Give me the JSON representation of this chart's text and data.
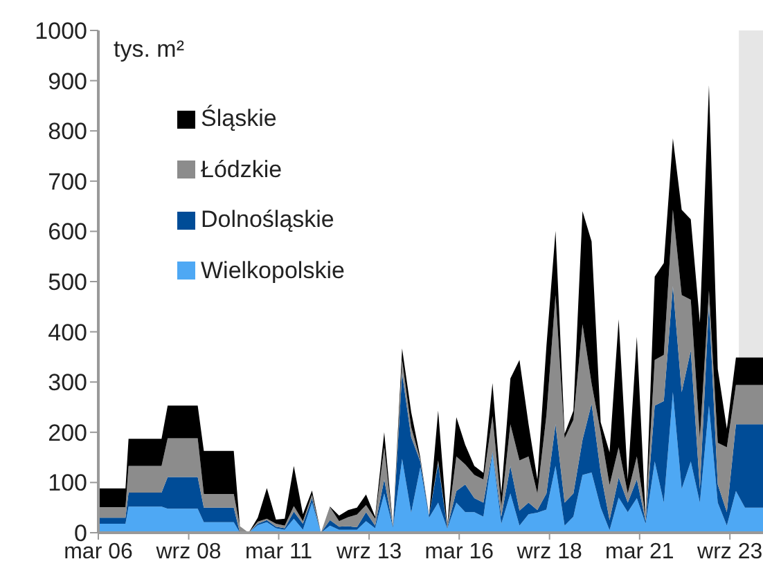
{
  "chart_data": {
    "type": "area",
    "stacked": true,
    "ylabel": "tys. m²",
    "x": [
      "2006-03",
      "2006-12",
      "2007-01",
      "2007-12",
      "2008-02",
      "2008-12",
      "2009-02",
      "2009-12",
      "2010-02",
      "2010-05",
      "2010-08",
      "2010-11",
      "2011-02",
      "2011-05",
      "2011-08",
      "2011-11",
      "2012-02",
      "2012-05",
      "2012-08",
      "2012-11",
      "2013-02",
      "2013-05",
      "2013-08",
      "2013-11",
      "2014-02",
      "2014-05",
      "2014-08",
      "2014-11",
      "2015-02",
      "2015-05",
      "2015-08",
      "2015-11",
      "2016-02",
      "2016-05",
      "2016-08",
      "2016-11",
      "2017-02",
      "2017-05",
      "2017-08",
      "2017-11",
      "2018-02",
      "2018-05",
      "2018-08",
      "2018-11",
      "2019-02",
      "2019-05",
      "2019-08",
      "2019-11",
      "2020-02",
      "2020-05",
      "2020-08",
      "2020-11",
      "2021-02",
      "2021-05",
      "2021-08",
      "2021-11",
      "2022-02",
      "2022-05",
      "2022-08",
      "2022-11",
      "2023-02",
      "2023-05",
      "2023-08",
      "2023-11",
      "2024-02",
      "2024-05",
      "2024-08"
    ],
    "series": [
      {
        "name": "Wielkopolskie",
        "color": "#4ea8f4",
        "values": [
          18,
          18,
          52,
          52,
          48,
          48,
          21,
          21,
          0,
          0,
          15,
          21,
          9,
          6,
          28,
          6,
          60,
          0,
          14,
          6,
          6,
          6,
          23,
          9,
          78,
          10,
          147,
          40,
          130,
          30,
          60,
          8,
          60,
          41,
          41,
          32,
          158,
          18,
          78,
          14,
          37,
          40,
          46,
          133,
          14,
          32,
          115,
          120,
          50,
          5,
          70,
          41,
          69,
          18,
          142,
          60,
          280,
          87,
          142,
          60,
          253,
          60,
          14,
          83,
          50,
          50,
          50
        ]
      },
      {
        "name": "Dolnośląskie",
        "color": "#004c97",
        "values": [
          12,
          12,
          28,
          28,
          63,
          63,
          29,
          29,
          0,
          0,
          3,
          4,
          3,
          3,
          14,
          12,
          9,
          0,
          11,
          6,
          7,
          5,
          18,
          5,
          28,
          2,
          170,
          150,
          12,
          4,
          78,
          2,
          23,
          55,
          28,
          28,
          4,
          14,
          55,
          30,
          23,
          5,
          32,
          83,
          46,
          46,
          70,
          137,
          70,
          20,
          40,
          19,
          37,
          5,
          111,
          202,
          211,
          193,
          221,
          27,
          202,
          36,
          27,
          133,
          166,
          166,
          166
        ]
      },
      {
        "name": "Łódzkie",
        "color": "#8c8c8c",
        "values": [
          21,
          21,
          53,
          53,
          77,
          77,
          27,
          27,
          13,
          0,
          4,
          3,
          6,
          5,
          11,
          5,
          7,
          0,
          26,
          11,
          18,
          25,
          14,
          14,
          64,
          1,
          27,
          20,
          4,
          0,
          6,
          2,
          69,
          40,
          46,
          46,
          70,
          20,
          83,
          100,
          92,
          33,
          156,
          257,
          128,
          147,
          230,
          40,
          80,
          70,
          60,
          18,
          46,
          9,
          91,
          92,
          152,
          193,
          101,
          101,
          27,
          83,
          129,
          78,
          78,
          78,
          78
        ]
      },
      {
        "name": "Śląskie",
        "color": "#000000",
        "values": [
          37,
          37,
          54,
          54,
          65,
          65,
          86,
          86,
          0,
          0,
          8,
          61,
          8,
          14,
          80,
          14,
          8,
          0,
          1,
          11,
          14,
          14,
          21,
          4,
          30,
          1,
          23,
          30,
          4,
          0,
          99,
          2,
          78,
          39,
          18,
          13,
          66,
          26,
          91,
          200,
          64,
          28,
          138,
          128,
          9,
          18,
          225,
          283,
          20,
          65,
          255,
          28,
          238,
          0,
          166,
          183,
          142,
          170,
          160,
          230,
          409,
          147,
          37,
          55,
          55,
          55,
          55
        ]
      }
    ],
    "xlim": [
      "2006-03",
      "2024-08"
    ],
    "xticks": [
      {
        "value": "2006-03",
        "label": "mar 06"
      },
      {
        "value": "2008-09",
        "label": "wrz 08"
      },
      {
        "value": "2011-03",
        "label": "mar 11"
      },
      {
        "value": "2013-09",
        "label": "wrz 13"
      },
      {
        "value": "2016-03",
        "label": "mar 16"
      },
      {
        "value": "2018-09",
        "label": "wrz 18"
      },
      {
        "value": "2021-03",
        "label": "mar 21"
      },
      {
        "value": "2023-09",
        "label": "wrz 23"
      }
    ],
    "ylim": [
      0,
      1000
    ],
    "yticks": [
      0,
      100,
      200,
      300,
      400,
      500,
      600,
      700,
      800,
      900,
      1000
    ],
    "bands": [
      {
        "axis": "x",
        "from": "2023-12",
        "to": "2024-08",
        "color": "#e6e6e6"
      }
    ],
    "legend": "top left",
    "grid": false
  }
}
